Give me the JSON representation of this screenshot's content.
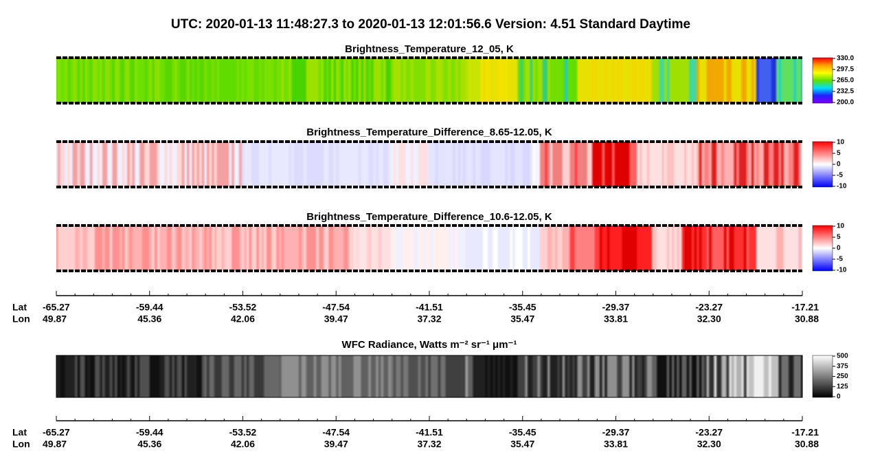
{
  "header": {
    "title": "UTC:  2020-01-13   11:48:27.3  to  2020-01-13   12:01:56.6    Version: 4.51  Standard Daytime"
  },
  "panels": [
    {
      "title": "Brightness_Temperature_12_05, K",
      "colorbar": [
        "330.0",
        "297.5",
        "265.0",
        "232.5",
        "200.0"
      ]
    },
    {
      "title": "Brightness_Temperature_Difference_8.65-12.05, K",
      "colorbar": [
        "10",
        "5",
        "0",
        "-5",
        "-10"
      ]
    },
    {
      "title": "Brightness_Temperature_Difference_10.6-12.05, K",
      "colorbar": [
        "10",
        "5",
        "0",
        "-5",
        "-10"
      ]
    },
    {
      "title": "WFC Radiance, Watts m⁻² sr⁻¹ μm⁻¹",
      "colorbar": [
        "500",
        "375",
        "250",
        "125",
        "0"
      ]
    }
  ],
  "axes": [
    {
      "lat_label": "Lat",
      "lon_label": "Lon",
      "lat": [
        "-65.27",
        "-59.44",
        "-53.52",
        "-47.54",
        "-41.51",
        "-35.45",
        "-29.37",
        "-23.27",
        "-17.21"
      ],
      "lon": [
        "49.87",
        "45.36",
        "42.06",
        "39.47",
        "37.32",
        "35.47",
        "33.81",
        "32.30",
        "30.88"
      ]
    },
    {
      "lat_label": "Lat",
      "lon_label": "Lon",
      "lat": [
        "-65.27",
        "-59.44",
        "-53.52",
        "-47.54",
        "-41.51",
        "-35.45",
        "-29.37",
        "-23.27",
        "-17.21"
      ],
      "lon": [
        "49.87",
        "45.36",
        "42.06",
        "39.47",
        "37.32",
        "35.47",
        "33.81",
        "32.30",
        "30.88"
      ]
    }
  ]
}
